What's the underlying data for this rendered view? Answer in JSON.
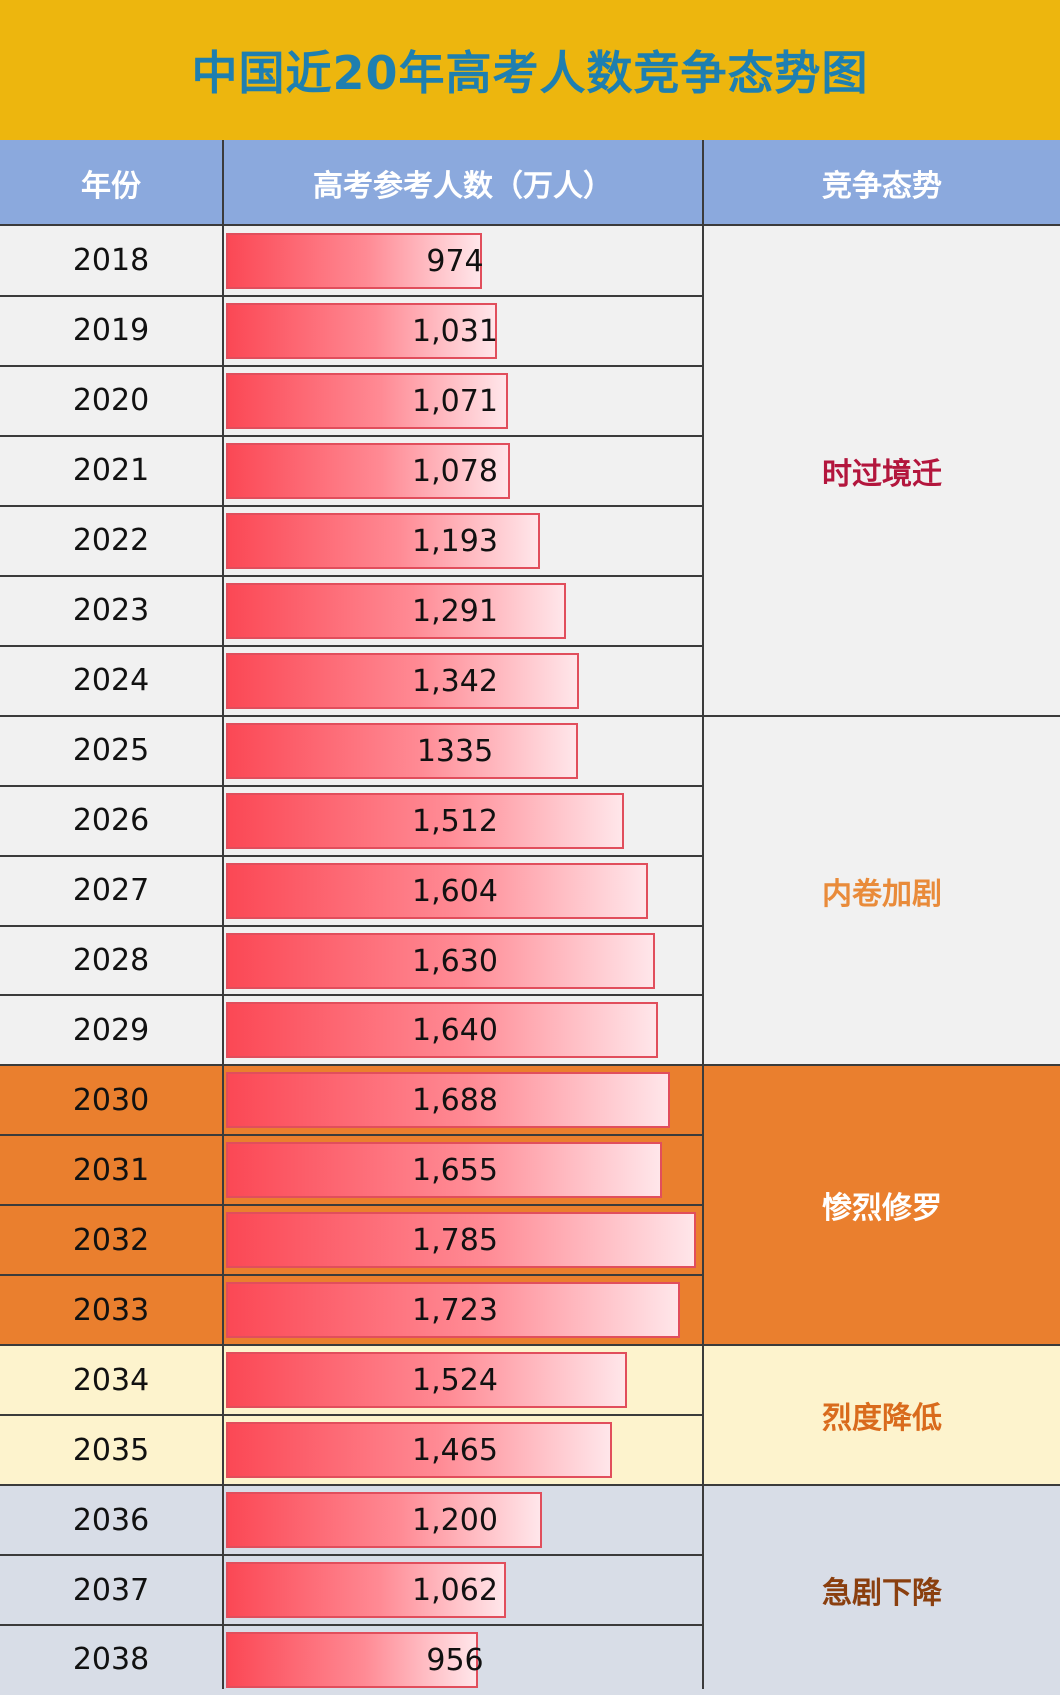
{
  "chart_data": {
    "type": "table",
    "title": "中国近20年高考人数竞争态势图",
    "columns": [
      "年份",
      "高考参考人数（万人）",
      "竞争态势"
    ],
    "rows": [
      {
        "year": "2018",
        "value": 974,
        "label": "974"
      },
      {
        "year": "2019",
        "value": 1031,
        "label": "1,031"
      },
      {
        "year": "2020",
        "value": 1071,
        "label": "1,071"
      },
      {
        "year": "2021",
        "value": 1078,
        "label": "1,078"
      },
      {
        "year": "2022",
        "value": 1193,
        "label": "1,193"
      },
      {
        "year": "2023",
        "value": 1291,
        "label": "1,291"
      },
      {
        "year": "2024",
        "value": 1342,
        "label": "1,342"
      },
      {
        "year": "2025",
        "value": 1335,
        "label": "1335"
      },
      {
        "year": "2026",
        "value": 1512,
        "label": "1,512"
      },
      {
        "year": "2027",
        "value": 1604,
        "label": "1,604"
      },
      {
        "year": "2028",
        "value": 1630,
        "label": "1,630"
      },
      {
        "year": "2029",
        "value": 1640,
        "label": "1,640"
      },
      {
        "year": "2030",
        "value": 1688,
        "label": "1,688"
      },
      {
        "year": "2031",
        "value": 1655,
        "label": "1,655"
      },
      {
        "year": "2032",
        "value": 1785,
        "label": "1,785"
      },
      {
        "year": "2033",
        "value": 1723,
        "label": "1,723"
      },
      {
        "year": "2034",
        "value": 1524,
        "label": "1,524"
      },
      {
        "year": "2035",
        "value": 1465,
        "label": "1,465"
      },
      {
        "year": "2036",
        "value": 1200,
        "label": "1,200"
      },
      {
        "year": "2037",
        "value": 1062,
        "label": "1,062"
      },
      {
        "year": "2038",
        "value": 956,
        "label": "956"
      }
    ],
    "groups": [
      {
        "label": "时过境迁",
        "start": 0,
        "end": 6,
        "bg": "#f1f1f1",
        "color": "#b3163d"
      },
      {
        "label": "内卷加剧",
        "start": 7,
        "end": 11,
        "bg": "#f1f1f1",
        "color": "#e98b3a"
      },
      {
        "label": "惨烈修罗",
        "start": 12,
        "end": 15,
        "bg": "#ea7f2e",
        "color": "#ffffff"
      },
      {
        "label": "烈度降低",
        "start": 16,
        "end": 17,
        "bg": "#fdf3cd",
        "color": "#d96b1d"
      },
      {
        "label": "急剧下降",
        "start": 18,
        "end": 20,
        "bg": "#d8dde7",
        "color": "#8a3f0f"
      }
    ],
    "bar_scale_max": 1785,
    "bar_color": "#fb4855"
  }
}
